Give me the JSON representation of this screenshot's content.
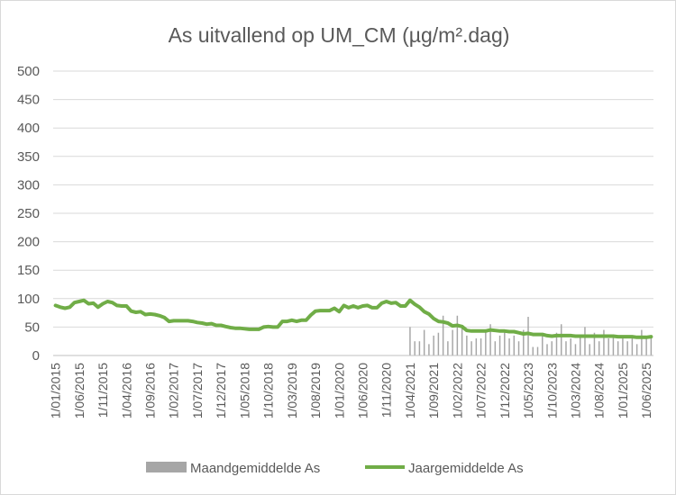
{
  "chart_data": {
    "type": "bar+line",
    "title": "As uitvallend op UM_CM (µg/m².dag)",
    "xlabel": "",
    "ylabel": "",
    "ylim": [
      0,
      500
    ],
    "yticks": [
      "0",
      "50",
      "100",
      "150",
      "200",
      "250",
      "300",
      "350",
      "400",
      "450",
      "500"
    ],
    "xticks": [
      "1/01/2015",
      "1/06/2015",
      "1/11/2015",
      "1/04/2016",
      "1/09/2016",
      "1/02/2017",
      "1/07/2017",
      "1/12/2017",
      "1/05/2018",
      "1/10/2018",
      "1/03/2019",
      "1/08/2019",
      "1/01/2020",
      "1/06/2020",
      "1/11/2020",
      "1/04/2021",
      "1/09/2021",
      "1/02/2022",
      "1/07/2022",
      "1/12/2022",
      "1/05/2023",
      "1/10/2023",
      "1/03/2024",
      "1/08/2024",
      "1/01/2025",
      "1/06/2025"
    ],
    "grid": "horizontal",
    "legend_position": "bottom",
    "colors": {
      "bars": "#a6a6a6",
      "line": "#70ad47",
      "grid": "#d9d9d9"
    },
    "series": [
      {
        "name": "Maandgemiddelde As",
        "kind": "bar",
        "points": [
          [
            "2021-04",
            50
          ],
          [
            "2021-05",
            25
          ],
          [
            "2021-06",
            25
          ],
          [
            "2021-07",
            45
          ],
          [
            "2021-08",
            20
          ],
          [
            "2021-09",
            35
          ],
          [
            "2021-10",
            40
          ],
          [
            "2021-11",
            70
          ],
          [
            "2021-12",
            25
          ],
          [
            "2022-01",
            45
          ],
          [
            "2022-02",
            70
          ],
          [
            "2022-03",
            50
          ],
          [
            "2022-04",
            35
          ],
          [
            "2022-05",
            25
          ],
          [
            "2022-06",
            30
          ],
          [
            "2022-07",
            30
          ],
          [
            "2022-08",
            45
          ],
          [
            "2022-09",
            55
          ],
          [
            "2022-10",
            25
          ],
          [
            "2022-11",
            35
          ],
          [
            "2022-12",
            45
          ],
          [
            "2023-01",
            30
          ],
          [
            "2023-02",
            35
          ],
          [
            "2023-03",
            25
          ],
          [
            "2023-04",
            45
          ],
          [
            "2023-05",
            68
          ],
          [
            "2023-06",
            15
          ],
          [
            "2023-07",
            15
          ],
          [
            "2023-08",
            35
          ],
          [
            "2023-09",
            20
          ],
          [
            "2023-10",
            25
          ],
          [
            "2023-11",
            40
          ],
          [
            "2023-12",
            55
          ],
          [
            "2024-01",
            25
          ],
          [
            "2024-02",
            30
          ],
          [
            "2024-03",
            20
          ],
          [
            "2024-04",
            35
          ],
          [
            "2024-05",
            50
          ],
          [
            "2024-06",
            20
          ],
          [
            "2024-07",
            40
          ],
          [
            "2024-08",
            25
          ],
          [
            "2024-09",
            45
          ],
          [
            "2024-10",
            30
          ],
          [
            "2024-11",
            35
          ],
          [
            "2024-12",
            25
          ],
          [
            "2025-01",
            30
          ],
          [
            "2025-02",
            25
          ],
          [
            "2025-03",
            35
          ],
          [
            "2025-04",
            20
          ],
          [
            "2025-05",
            45
          ],
          [
            "2025-06",
            30
          ],
          [
            "2025-07",
            35
          ]
        ]
      },
      {
        "name": "Jaargemiddelde As",
        "kind": "line",
        "points": [
          [
            "2015-01",
            88
          ],
          [
            "2015-02",
            85
          ],
          [
            "2015-03",
            83
          ],
          [
            "2015-04",
            85
          ],
          [
            "2015-05",
            93
          ],
          [
            "2015-06",
            95
          ],
          [
            "2015-07",
            97
          ],
          [
            "2015-08",
            91
          ],
          [
            "2015-09",
            92
          ],
          [
            "2015-10",
            85
          ],
          [
            "2015-11",
            91
          ],
          [
            "2015-12",
            95
          ],
          [
            "2016-01",
            93
          ],
          [
            "2016-02",
            88
          ],
          [
            "2016-03",
            87
          ],
          [
            "2016-04",
            87
          ],
          [
            "2016-05",
            78
          ],
          [
            "2016-06",
            76
          ],
          [
            "2016-07",
            77
          ],
          [
            "2016-08",
            72
          ],
          [
            "2016-09",
            73
          ],
          [
            "2016-10",
            72
          ],
          [
            "2016-11",
            70
          ],
          [
            "2016-12",
            67
          ],
          [
            "2017-01",
            60
          ],
          [
            "2017-02",
            61
          ],
          [
            "2017-03",
            61
          ],
          [
            "2017-04",
            61
          ],
          [
            "2017-05",
            61
          ],
          [
            "2017-06",
            60
          ],
          [
            "2017-07",
            58
          ],
          [
            "2017-08",
            57
          ],
          [
            "2017-09",
            55
          ],
          [
            "2017-10",
            56
          ],
          [
            "2017-11",
            53
          ],
          [
            "2017-12",
            53
          ],
          [
            "2018-01",
            51
          ],
          [
            "2018-02",
            49
          ],
          [
            "2018-03",
            48
          ],
          [
            "2018-04",
            48
          ],
          [
            "2018-05",
            47
          ],
          [
            "2018-06",
            46
          ],
          [
            "2018-07",
            46
          ],
          [
            "2018-08",
            46
          ],
          [
            "2018-09",
            50
          ],
          [
            "2018-10",
            51
          ],
          [
            "2018-11",
            50
          ],
          [
            "2018-12",
            50
          ],
          [
            "2019-01",
            60
          ],
          [
            "2019-02",
            60
          ],
          [
            "2019-03",
            62
          ],
          [
            "2019-04",
            60
          ],
          [
            "2019-05",
            62
          ],
          [
            "2019-06",
            62
          ],
          [
            "2019-07",
            71
          ],
          [
            "2019-08",
            78
          ],
          [
            "2019-09",
            79
          ],
          [
            "2019-10",
            79
          ],
          [
            "2019-11",
            79
          ],
          [
            "2019-12",
            83
          ],
          [
            "2020-01",
            77
          ],
          [
            "2020-02",
            88
          ],
          [
            "2020-03",
            84
          ],
          [
            "2020-04",
            87
          ],
          [
            "2020-05",
            84
          ],
          [
            "2020-06",
            87
          ],
          [
            "2020-07",
            88
          ],
          [
            "2020-08",
            84
          ],
          [
            "2020-09",
            84
          ],
          [
            "2020-10",
            92
          ],
          [
            "2020-11",
            95
          ],
          [
            "2020-12",
            92
          ],
          [
            "2021-01",
            93
          ],
          [
            "2021-02",
            87
          ],
          [
            "2021-03",
            87
          ],
          [
            "2021-04",
            97
          ],
          [
            "2021-05",
            90
          ],
          [
            "2021-06",
            85
          ],
          [
            "2021-07",
            77
          ],
          [
            "2021-08",
            73
          ],
          [
            "2021-09",
            65
          ],
          [
            "2021-10",
            60
          ],
          [
            "2021-11",
            59
          ],
          [
            "2021-12",
            57
          ],
          [
            "2022-01",
            52
          ],
          [
            "2022-02",
            53
          ],
          [
            "2022-03",
            51
          ],
          [
            "2022-04",
            44
          ],
          [
            "2022-05",
            43
          ],
          [
            "2022-06",
            43
          ],
          [
            "2022-07",
            43
          ],
          [
            "2022-08",
            43
          ],
          [
            "2022-09",
            45
          ],
          [
            "2022-10",
            44
          ],
          [
            "2022-11",
            43
          ],
          [
            "2022-12",
            43
          ],
          [
            "2023-01",
            42
          ],
          [
            "2023-02",
            42
          ],
          [
            "2023-03",
            40
          ],
          [
            "2023-04",
            38
          ],
          [
            "2023-05",
            39
          ],
          [
            "2023-06",
            37
          ],
          [
            "2023-07",
            37
          ],
          [
            "2023-08",
            37
          ],
          [
            "2023-09",
            35
          ],
          [
            "2023-10",
            34
          ],
          [
            "2023-11",
            35
          ],
          [
            "2023-12",
            35
          ],
          [
            "2024-01",
            35
          ],
          [
            "2024-02",
            35
          ],
          [
            "2024-03",
            34
          ],
          [
            "2024-04",
            34
          ],
          [
            "2024-05",
            34
          ],
          [
            "2024-06",
            34
          ],
          [
            "2024-07",
            34
          ],
          [
            "2024-08",
            34
          ],
          [
            "2024-09",
            34
          ],
          [
            "2024-10",
            34
          ],
          [
            "2024-11",
            34
          ],
          [
            "2024-12",
            33
          ],
          [
            "2025-01",
            33
          ],
          [
            "2025-02",
            33
          ],
          [
            "2025-03",
            33
          ],
          [
            "2025-04",
            32
          ],
          [
            "2025-05",
            32
          ],
          [
            "2025-06",
            32
          ],
          [
            "2025-07",
            33
          ]
        ]
      }
    ]
  }
}
